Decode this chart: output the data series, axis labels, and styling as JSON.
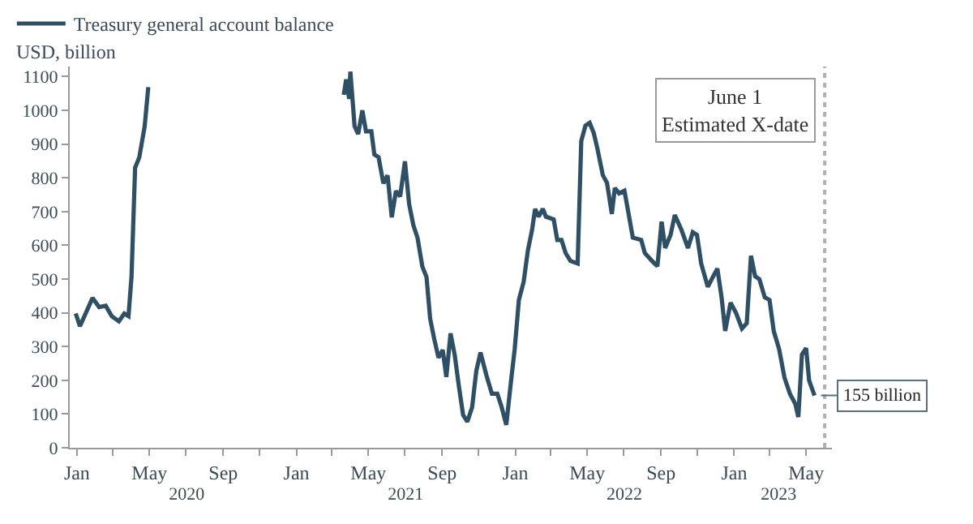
{
  "chart_data": {
    "type": "line",
    "ylabel": "USD, billion",
    "legend": "top left",
    "marker": "none",
    "line_style": "solid",
    "x": [
      "2019-12-30",
      "2020-01-06",
      "2020-01-27",
      "2020-02-07",
      "2020-02-18",
      "2020-02-28",
      "2020-03-11",
      "2020-03-20",
      "2020-03-27",
      "2020-04-01",
      "2020-04-07",
      "2020-04-14",
      "2020-04-23",
      "2020-04-29",
      "2020-05-06",
      "2020-10-01",
      "2021-03-14",
      "2021-03-21",
      "2021-03-25",
      "2021-03-30",
      "2021-04-01",
      "2021-04-08",
      "2021-04-14",
      "2021-04-21",
      "2021-04-27",
      "2021-05-06",
      "2021-05-11",
      "2021-05-18",
      "2021-05-26",
      "2021-06-02",
      "2021-06-09",
      "2021-06-16",
      "2021-06-23",
      "2021-07-01",
      "2021-07-08",
      "2021-07-15",
      "2021-07-22",
      "2021-07-30",
      "2021-08-06",
      "2021-08-12",
      "2021-08-19",
      "2021-08-26",
      "2021-09-02",
      "2021-09-08",
      "2021-09-15",
      "2021-09-22",
      "2021-09-29",
      "2021-10-06",
      "2021-10-13",
      "2021-10-21",
      "2021-10-28",
      "2021-11-04",
      "2021-11-14",
      "2021-11-23",
      "2021-12-02",
      "2021-12-09",
      "2021-12-17",
      "2021-12-25",
      "2021-12-31",
      "2022-01-07",
      "2022-01-15",
      "2022-01-22",
      "2022-01-29",
      "2022-02-03",
      "2022-02-09",
      "2022-02-16",
      "2022-02-21",
      "2022-03-06",
      "2022-03-12",
      "2022-03-19",
      "2022-03-26",
      "2022-04-03",
      "2022-04-15",
      "2022-04-21",
      "2022-04-28",
      "2022-05-05",
      "2022-05-12",
      "2022-05-18",
      "2022-05-27",
      "2022-06-03",
      "2022-06-11",
      "2022-06-16",
      "2022-06-23",
      "2022-07-02",
      "2022-07-09",
      "2022-07-16",
      "2022-07-30",
      "2022-08-05",
      "2022-08-17",
      "2022-08-26",
      "2022-09-02",
      "2022-09-08",
      "2022-09-17",
      "2022-09-24",
      "2022-10-05",
      "2022-10-16",
      "2022-10-24",
      "2022-10-31",
      "2022-11-07",
      "2022-11-18",
      "2022-11-27",
      "2022-12-04",
      "2022-12-11",
      "2022-12-17",
      "2022-12-26",
      "2023-01-04",
      "2023-01-14",
      "2023-01-22",
      "2023-01-29",
      "2023-02-05",
      "2023-02-12",
      "2023-02-21",
      "2023-03-01",
      "2023-03-08",
      "2023-03-17",
      "2023-03-26",
      "2023-04-04",
      "2023-04-13",
      "2023-04-18",
      "2023-04-24",
      "2023-05-01",
      "2023-05-06",
      "2023-05-15"
    ],
    "series": [
      {
        "name": "Treasury general account balance",
        "color": "#2f5064",
        "values": [
          398,
          360,
          444,
          417,
          421,
          390,
          375,
          398,
          390,
          506,
          830,
          861,
          953,
          1069,
          null,
          null,
          null,
          1046,
          1092,
          1034,
          1115,
          953,
          930,
          1000,
          938,
          938,
          869,
          861,
          784,
          807,
          683,
          761,
          745,
          849,
          722,
          660,
          622,
          537,
          506,
          383,
          321,
          267,
          290,
          210,
          339,
          275,
          182,
          97,
          77,
          120,
          228,
          282,
          214,
          160,
          160,
          122,
          68,
          199,
          292,
          438,
          492,
          585,
          646,
          708,
          685,
          708,
          685,
          677,
          616,
          616,
          577,
          554,
          546,
          909,
          955,
          963,
          932,
          886,
          808,
          785,
          693,
          770,
          754,
          762,
          693,
          623,
          616,
          577,
          554,
          538,
          670,
          592,
          631,
          690,
          646,
          592,
          639,
          631,
          546,
          477,
          508,
          531,
          446,
          346,
          430,
          400,
          353,
          369,
          569,
          508,
          500,
          446,
          438,
          346,
          292,
          207,
          160,
          130,
          91,
          276,
          295,
          199,
          155
        ]
      }
    ],
    "ylim": [
      0,
      1130
    ],
    "yticks": [
      0,
      100,
      200,
      300,
      400,
      500,
      600,
      700,
      800,
      900,
      1000,
      1100
    ],
    "xlim": [
      "2019-12-20",
      "2023-06-13"
    ],
    "xticks": [
      {
        "value": "2020-01-01",
        "label": "Jan"
      },
      {
        "value": "2020-03-01",
        "label": null
      },
      {
        "value": "2020-05-01",
        "label": "May"
      },
      {
        "value": "2020-07-01",
        "label": null
      },
      {
        "value": "2020-09-01",
        "label": "Sep"
      },
      {
        "value": "2020-11-01",
        "label": null
      },
      {
        "value": "2021-01-01",
        "label": "Jan"
      },
      {
        "value": "2021-03-01",
        "label": null
      },
      {
        "value": "2021-05-01",
        "label": "May"
      },
      {
        "value": "2021-07-01",
        "label": null
      },
      {
        "value": "2021-09-01",
        "label": "Sep"
      },
      {
        "value": "2021-11-01",
        "label": null
      },
      {
        "value": "2022-01-01",
        "label": "Jan"
      },
      {
        "value": "2022-03-01",
        "label": null
      },
      {
        "value": "2022-05-01",
        "label": "May"
      },
      {
        "value": "2022-07-01",
        "label": null
      },
      {
        "value": "2022-09-01",
        "label": "Sep"
      },
      {
        "value": "2022-11-01",
        "label": null
      },
      {
        "value": "2023-01-01",
        "label": "Jan"
      },
      {
        "value": "2023-03-01",
        "label": null
      },
      {
        "value": "2023-05-01",
        "label": "May"
      }
    ],
    "x2lim": [
      "2019-12-20",
      "2023-06-13"
    ],
    "x2ticks": [
      {
        "value": "2020-07-02",
        "label": "2020"
      },
      {
        "value": "2021-07-02",
        "label": "2021"
      },
      {
        "value": "2022-07-02",
        "label": "2022"
      },
      {
        "value": "2023-03-16",
        "label": "2023"
      }
    ],
    "ref_lines": [
      {
        "axis": "x",
        "value": "2023-06-01",
        "label": "June 1\nEstimated X-date",
        "color": "#b0b0b0",
        "line_style": "dotted"
      }
    ],
    "annotations": [
      {
        "text": "155 billion",
        "x": "2023-05-15",
        "y": 155
      }
    ]
  }
}
